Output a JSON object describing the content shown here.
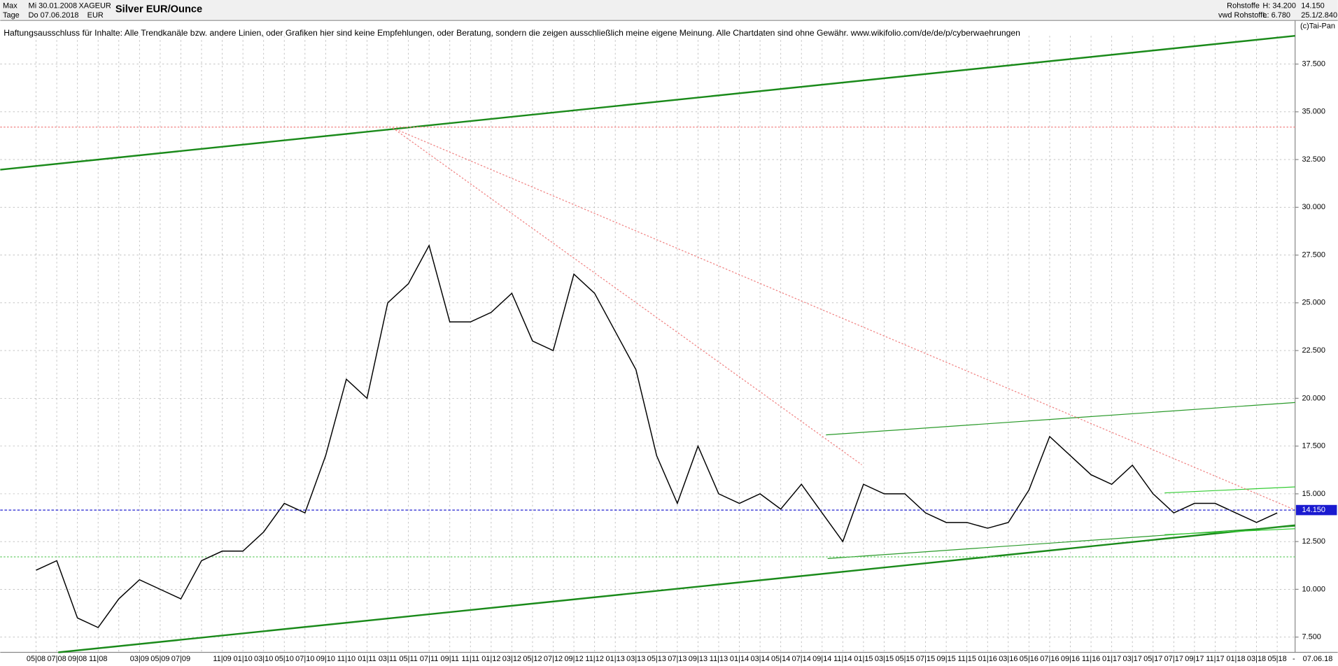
{
  "header": {
    "range": "Max",
    "interval": "Tage",
    "from": "Mi 30.01.2008",
    "to": "Do 07.06.2018",
    "symbol": "XAGEUR",
    "currency": "EUR",
    "title": "Silver EUR/Ounce",
    "group": "Rohstoffe",
    "source": "vwd Rohstoffe",
    "high": "H: 34.200",
    "low": "L: 6.780",
    "last": "14.150",
    "scale": "25.1/2.840",
    "copyright": "(c)Tai-Pan"
  },
  "disclaimer": "Haftungsausschluss für Inhalte: Alle Trendkanäle bzw. andere Linien, oder Grafiken hier sind keine Empfehlungen, oder Beratung, sondern die zeigen ausschließlich meine eigene Meinung. Alle Chartdaten sind ohne Gewähr.  www.wikifolio.com/de/de/p/cyberwaehrungen",
  "chart_data": {
    "type": "line",
    "categories": [
      "05|08",
      "07|08",
      "09|08",
      "11|08",
      null,
      "03|09",
      "05|09",
      "07|09",
      null,
      "11|09",
      "01|10",
      "03|10",
      "05|10",
      "07|10",
      "09|10",
      "11|10",
      "01|11",
      "03|11",
      "05|11",
      "07|11",
      "09|11",
      "11|11",
      "01|12",
      "03|12",
      "05|12",
      "07|12",
      "09|12",
      "11|12",
      "01|13",
      "03|13",
      "05|13",
      "07|13",
      "09|13",
      "11|13",
      "01|14",
      "03|14",
      "05|14",
      "07|14",
      "09|14",
      "11|14",
      "01|15",
      "03|15",
      "05|15",
      "07|15",
      "09|15",
      "11|15",
      "01|16",
      "03|16",
      "05|16",
      "07|16",
      "09|16",
      "11|16",
      "01|17",
      "03|17",
      "05|17",
      "07|17",
      "09|17",
      "11|17",
      "01|18",
      "03|18",
      "05|18"
    ],
    "series": [
      {
        "name": "Silver EUR/Ounce",
        "color": "#000000",
        "values": [
          11,
          11.5,
          8.5,
          8,
          9.5,
          10.5,
          10,
          9.5,
          11.5,
          12,
          12,
          13,
          14.5,
          14,
          17,
          21,
          20,
          25,
          26,
          28,
          24,
          24,
          24.5,
          25.5,
          23,
          22.5,
          26.5,
          25.5,
          23.5,
          21.5,
          17,
          14.5,
          17.5,
          15,
          14.5,
          15,
          14.2,
          15.5,
          14,
          12.5,
          15.5,
          15,
          15,
          14,
          13.5,
          13.5,
          13.2,
          13.5,
          15.2,
          18,
          17,
          16,
          15.5,
          16.5,
          15,
          14,
          14.5,
          14.5,
          14,
          13.5,
          14
        ]
      }
    ],
    "last_price": {
      "value": 14.15,
      "label": "14.150"
    },
    "end_date": "07.06.18",
    "ylim": [
      6.7,
      40.05
    ],
    "yticks": [
      {
        "value": 7.5,
        "label": "7.500"
      },
      {
        "value": 10,
        "label": "10.000"
      },
      {
        "value": 12.5,
        "label": "12.500"
      },
      {
        "value": 15,
        "label": "15.000"
      },
      {
        "value": 17.5,
        "label": "17.500"
      },
      {
        "value": 20,
        "label": "20.000"
      },
      {
        "value": 22.5,
        "label": "22.500"
      },
      {
        "value": 25,
        "label": "25.000"
      },
      {
        "value": 27.5,
        "label": "27.500"
      },
      {
        "value": 30,
        "label": "30.000"
      },
      {
        "value": 32.5,
        "label": "32.500"
      },
      {
        "value": 35,
        "label": "35.000"
      },
      {
        "value": 37.5,
        "label": "37.500"
      }
    ],
    "grid": true
  }
}
